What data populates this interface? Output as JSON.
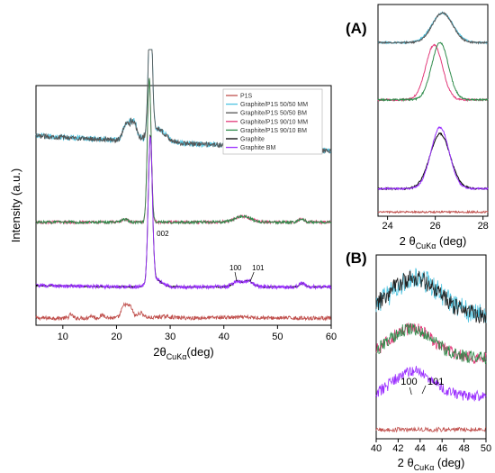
{
  "chart_data": [
    {
      "id": "main",
      "type": "line",
      "xlabel": "2θCuKα(deg)",
      "ylabel": "Intensity (a.u.)",
      "xlim": [
        5,
        60
      ],
      "xticks": [
        10,
        20,
        30,
        40,
        50,
        60
      ],
      "y_ticks_shown": false,
      "grid": false,
      "legend_position": "top-right",
      "series": [
        {
          "name": "P1S",
          "color": "#c0504d",
          "offset": 0.03,
          "gain": 0.06,
          "shape": "p1s",
          "noise": 0.008
        },
        {
          "name": "Graphite/P1S 50/50 MM",
          "color": "#4dc3e0",
          "offset": 0.79,
          "gain": 0.57,
          "shape": "mix50",
          "noise": 0.012
        },
        {
          "name": "Graphite/P1S 50/50 BM",
          "color": "#555555",
          "offset": 0.79,
          "gain": 0.57,
          "shape": "mix50",
          "noise": 0.01
        },
        {
          "name": "Graphite/P1S 90/10 MM",
          "color": "#e23b7a",
          "offset": 0.43,
          "gain": 0.6,
          "shape": "mix90",
          "noise": 0.006
        },
        {
          "name": "Graphite/P1S 90/10 BM",
          "color": "#2e8b4a",
          "offset": 0.43,
          "gain": 0.6,
          "shape": "mix90",
          "noise": 0.006
        },
        {
          "name": "Graphite",
          "color": "#000000",
          "offset": 0.16,
          "gain": 0.61,
          "shape": "graphite",
          "noise": 0.003
        },
        {
          "name": "Graphite BM",
          "color": "#9b30ff",
          "offset": 0.16,
          "gain": 0.61,
          "shape": "graphite",
          "noise": 0.008
        }
      ],
      "annotations": [
        {
          "text": "002",
          "x": 27.5
        },
        {
          "text": "100",
          "x": 42.4
        },
        {
          "text": "101",
          "x": 44.6
        }
      ]
    },
    {
      "id": "A",
      "panel_label": "(A)",
      "type": "line",
      "xlabel": "2 θCuKα (deg)",
      "xlim": [
        23.6,
        28.2
      ],
      "xticks": [
        24,
        26,
        28
      ],
      "grid": false,
      "series": [
        {
          "name": "Graphite/P1S 50/50 MM",
          "color": "#4dc3e0",
          "offset": 0.82,
          "amp": 0.14,
          "center": 26.3,
          "width": 0.45
        },
        {
          "name": "Graphite/P1S 50/50 BM",
          "color": "#555555",
          "offset": 0.82,
          "amp": 0.14,
          "center": 26.3,
          "width": 0.42
        },
        {
          "name": "Graphite/P1S 90/10 MM",
          "color": "#e23b7a",
          "offset": 0.55,
          "amp": 0.26,
          "center": 25.95,
          "width": 0.35
        },
        {
          "name": "Graphite/P1S 90/10 BM",
          "color": "#2e8b4a",
          "offset": 0.55,
          "amp": 0.27,
          "center": 26.2,
          "width": 0.35
        },
        {
          "name": "Graphite",
          "color": "#000000",
          "offset": 0.13,
          "amp": 0.26,
          "center": 26.2,
          "width": 0.42
        },
        {
          "name": "Graphite BM",
          "color": "#9b30ff",
          "offset": 0.13,
          "amp": 0.29,
          "center": 26.2,
          "width": 0.38
        },
        {
          "name": "P1S",
          "color": "#c0504d",
          "offset": 0.02,
          "amp": 0.0,
          "center": 26.0,
          "width": 1.0
        }
      ]
    },
    {
      "id": "B",
      "panel_label": "(B)",
      "type": "line",
      "xlabel": "2 θCuKα (deg)",
      "xlim": [
        40,
        50
      ],
      "xticks": [
        40,
        42,
        44,
        46,
        48,
        50
      ],
      "grid": false,
      "series": [
        {
          "name": "Graphite/P1S 50/50 MM",
          "color": "#4dc3e0",
          "offset": 0.67,
          "amp": 0.2,
          "center": 43.6,
          "width": 2.3,
          "noise": 0.06
        },
        {
          "name": "Graphite/P1S 50/50 BM",
          "color": "#222222",
          "offset": 0.67,
          "amp": 0.2,
          "center": 43.4,
          "width": 2.3,
          "noise": 0.05
        },
        {
          "name": "Graphite/P1S 90/10 MM",
          "color": "#e23b7a",
          "offset": 0.44,
          "amp": 0.16,
          "center": 43.2,
          "width": 2.0,
          "noise": 0.035
        },
        {
          "name": "Graphite/P1S 90/10 BM",
          "color": "#2e8b4a",
          "offset": 0.44,
          "amp": 0.16,
          "center": 43.2,
          "width": 2.0,
          "noise": 0.035
        },
        {
          "name": "Graphite BM",
          "color": "#9b30ff",
          "offset": 0.23,
          "amp": 0.14,
          "center": 43.4,
          "width": 1.8,
          "noise": 0.03
        },
        {
          "name": "P1S",
          "color": "#c0504d",
          "offset": 0.05,
          "amp": 0.0,
          "center": 45.0,
          "width": 5.0,
          "noise": 0.012
        }
      ],
      "annotations": [
        {
          "text": "100",
          "x": 42.4
        },
        {
          "text": "101",
          "x": 45.0
        }
      ]
    }
  ]
}
